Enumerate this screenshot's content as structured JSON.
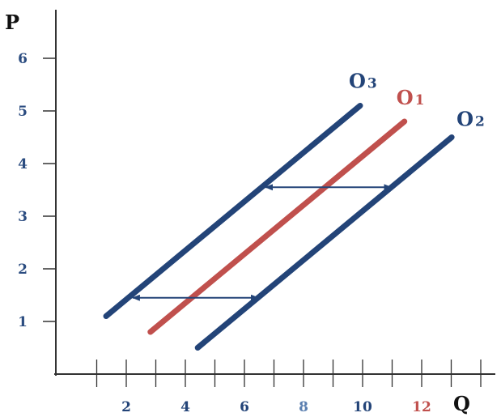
{
  "chart_data": {
    "type": "line",
    "xlabel": "Q",
    "ylabel": "P",
    "xlim": [
      0,
      14
    ],
    "ylim": [
      0,
      7
    ],
    "grid": false,
    "x_ticks": [
      1,
      2,
      3,
      4,
      5,
      6,
      7,
      8,
      9,
      10,
      11,
      12,
      13,
      14
    ],
    "x_tick_labels": [
      {
        "value": 2,
        "label": "2",
        "color": "#234478"
      },
      {
        "value": 4,
        "label": "4",
        "color": "#234478"
      },
      {
        "value": 6,
        "label": "6",
        "color": "#234478"
      },
      {
        "value": 8,
        "label": "8",
        "color": "#5b7fb0"
      },
      {
        "value": 10,
        "label": "10",
        "color": "#234478"
      },
      {
        "value": 12,
        "label": "12",
        "color": "#c0504d"
      }
    ],
    "y_ticks": [
      1,
      2,
      3,
      4,
      5,
      6
    ],
    "y_tick_labels": [
      {
        "value": 1,
        "label": "1"
      },
      {
        "value": 2,
        "label": "2"
      },
      {
        "value": 3,
        "label": "3"
      },
      {
        "value": 4,
        "label": "4"
      },
      {
        "value": 5,
        "label": "5"
      },
      {
        "value": 6,
        "label": "6"
      }
    ],
    "series": [
      {
        "name": "O3",
        "label_main": "O",
        "label_sub": "3",
        "color": "#234478",
        "points": [
          [
            1.7,
            1.1
          ],
          [
            10.3,
            5.1
          ]
        ]
      },
      {
        "name": "O1",
        "label_main": "O",
        "label_sub": "1",
        "color": "#c0504d",
        "points": [
          [
            3.2,
            0.8
          ],
          [
            11.8,
            4.8
          ]
        ]
      },
      {
        "name": "O2",
        "label_main": "O",
        "label_sub": "2",
        "color": "#234478",
        "points": [
          [
            4.8,
            0.5
          ],
          [
            13.4,
            4.5
          ]
        ]
      }
    ],
    "arrows": [
      {
        "from": [
          9.15,
          3.55
        ],
        "to": [
          7.1,
          3.55
        ],
        "color": "#234478"
      },
      {
        "from": [
          9.15,
          3.55
        ],
        "to": [
          11.35,
          3.55
        ],
        "color": "#234478"
      },
      {
        "from": [
          4.65,
          1.45
        ],
        "to": [
          2.6,
          1.45
        ],
        "color": "#234478"
      },
      {
        "from": [
          4.65,
          1.45
        ],
        "to": [
          6.85,
          1.45
        ],
        "color": "#234478"
      }
    ]
  }
}
